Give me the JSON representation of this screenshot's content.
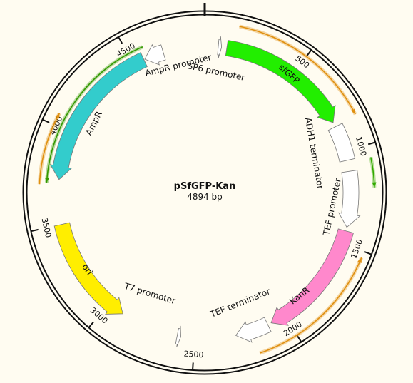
{
  "plasmid": {
    "name": "pSfGFP-Kan",
    "size_label": "4894 bp",
    "length": 4894
  },
  "ticks": [
    {
      "pos": 500,
      "label": "500"
    },
    {
      "pos": 1000,
      "label": "1000"
    },
    {
      "pos": 1500,
      "label": "1500"
    },
    {
      "pos": 2000,
      "label": "2000"
    },
    {
      "pos": 2500,
      "label": "2500"
    },
    {
      "pos": 3000,
      "label": "3000"
    },
    {
      "pos": 3500,
      "label": "3500"
    },
    {
      "pos": 4000,
      "label": "4000"
    },
    {
      "pos": 4500,
      "label": "4500"
    }
  ],
  "features": [
    {
      "name": "sfGFP",
      "start": 118,
      "end": 835,
      "dir": 1,
      "color": "#22ee00",
      "label_inside": true
    },
    {
      "name": "ADH1 terminator",
      "start": 860,
      "end": 1050,
      "dir": 0,
      "color": "#ffffff",
      "label_inside": false
    },
    {
      "name": "TEF promoter",
      "start": 1110,
      "end": 1410,
      "dir": 1,
      "color": "#ffffff",
      "label_inside": false
    },
    {
      "name": "KanR",
      "start": 1430,
      "end": 2080,
      "dir": 1,
      "color": "#ff88cc",
      "label_inside": true
    },
    {
      "name": "TEF terminator",
      "start": 2100,
      "end": 2280,
      "dir": 1,
      "color": "#ffffff",
      "label_inside": false
    },
    {
      "name": "T7 promoter",
      "start": 2575,
      "end": 2595,
      "dir": -1,
      "color": "#ffffff",
      "label_inside": false
    },
    {
      "name": "ori",
      "start": 2910,
      "end": 3500,
      "dir": -1,
      "color": "#ffee00",
      "label_inside": true
    },
    {
      "name": "AmpR",
      "start": 3740,
      "end": 4560,
      "dir": -1,
      "color": "#33cccc",
      "label_inside": true
    },
    {
      "name": "AmpR promoter",
      "start": 4565,
      "end": 4670,
      "dir": -1,
      "color": "#ffffff",
      "label_inside": false
    },
    {
      "name": "SP6 promoter",
      "start": 72,
      "end": 90,
      "dir": 1,
      "color": "#ffffff",
      "label_inside": false
    }
  ],
  "orfs": [
    {
      "start": 160,
      "end": 850,
      "dir": 1,
      "color": "#e09010"
    },
    {
      "start": 1060,
      "end": 1200,
      "dir": 1,
      "color": "#33aa00"
    },
    {
      "start": 1530,
      "end": 2190,
      "dir": -1,
      "color": "#e09010"
    },
    {
      "start": 3720,
      "end": 4580,
      "dir": -1,
      "color": "#339900"
    },
    {
      "start": 3710,
      "end": 4060,
      "dir": 1,
      "color": "#e09010"
    }
  ]
}
